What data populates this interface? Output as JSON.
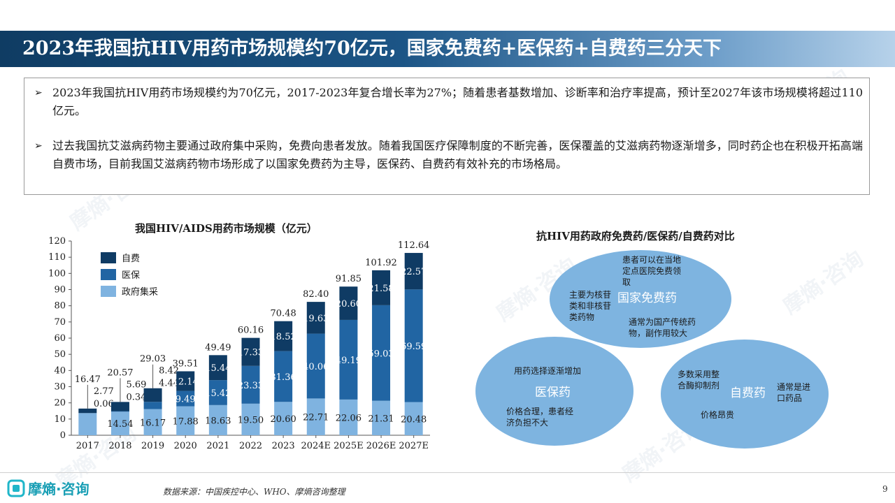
{
  "page": {
    "title": "2023年我国抗HIV用药市场规模约70亿元，国家免费药+医保药+自费药三分天下",
    "bullets": [
      "2023年我国抗HIV用药市场规模约为70亿元，2017-2023年复合增长率为27%；随着患者基数增加、诊断率和治疗率提高，预计至2027年该市场规模将超过110亿元。",
      "过去我国抗艾滋病药物主要通过政府集中采购，免费向患者发放。随着我国医疗保障制度的不断完善，医保覆盖的艾滋病药物逐渐增多，同时药企也在积极开拓高端自费市场，目前我国艾滋病药物市场形成了以国家免费药为主导，医保药、自费药有效补充的市场格局。"
    ],
    "bullet_marker": "➢",
    "source": "数据来源：中国疾控中心、WHO、摩熵咨询整理",
    "page_number": "9",
    "logo_text": "摩熵·咨询",
    "watermark": "摩熵·咨询"
  },
  "chart_data": {
    "type": "bar",
    "stacked": true,
    "title": "我国HIV/AIDS用药市场规模（亿元）",
    "categories": [
      "2017",
      "2018",
      "2019",
      "2020",
      "2021",
      "2022",
      "2023",
      "2024E",
      "2025E",
      "2026E",
      "2027E"
    ],
    "series": [
      {
        "name": "政府集采",
        "color": "#7fb3e0",
        "values": [
          13.64,
          14.54,
          16.17,
          17.88,
          18.63,
          19.5,
          20.6,
          22.71,
          22.06,
          21.31,
          20.48
        ]
      },
      {
        "name": "医保",
        "color": "#2165a3",
        "values": [
          0.06,
          0.34,
          4.44,
          9.49,
          15.42,
          23.33,
          31.36,
          40.06,
          49.19,
          59.03,
          69.59
        ]
      },
      {
        "name": "自费",
        "color": "#0f3b64",
        "values": [
          2.77,
          5.69,
          8.42,
          12.14,
          15.44,
          17.33,
          18.52,
          19.63,
          20.6,
          21.58,
          22.57
        ]
      }
    ],
    "totals": [
      "16.47",
      "20.57",
      "29.03",
      "39.51",
      "49.49",
      "60.16",
      "70.48",
      "82.40",
      "91.85",
      "101.92",
      "112.64"
    ],
    "segment_labels": {
      "政府集采": [
        "",
        "14.54",
        "16.17",
        "17.88",
        "18.63",
        "19.50",
        "20.60",
        "22.71",
        "22.06",
        "21.31",
        "20.48"
      ],
      "医保": [
        "",
        "",
        "",
        "9.49",
        "15.42",
        "23.33",
        "31.36",
        "40.06",
        "49.19",
        "59.03",
        "69.59"
      ],
      "自费": [
        "",
        "",
        "",
        "12.14",
        "15.44",
        "17.33",
        "18.52",
        "19.63",
        "20.60",
        "21.58",
        "22.57"
      ]
    },
    "callout_labels": [
      {
        "category": "2017",
        "lines": [
          "2.77",
          "0.06"
        ]
      },
      {
        "category": "2018",
        "lines": [
          "5.69",
          "0.34"
        ]
      },
      {
        "category": "2019",
        "lines": [
          "8.42",
          "4.44"
        ]
      }
    ],
    "y_ticks": [
      "0",
      "10",
      "20",
      "30",
      "40",
      "50",
      "60",
      "70",
      "80",
      "90",
      "100",
      "110",
      "120"
    ],
    "ylim": [
      0,
      120
    ],
    "legend_position": "top-left",
    "grid": false
  },
  "comparison": {
    "title": "抗HIV用药政府免费药/医保药/自费药对比",
    "free": {
      "title": "国家免费药",
      "note1": [
        "患者可以在当地",
        "定点医院免费领",
        "取"
      ],
      "note2": [
        "主要为核苷",
        "类和非核苷",
        "类药物"
      ],
      "note3": [
        "通常为国产传统药",
        "物，副作用较大"
      ]
    },
    "insurance": {
      "title": "医保药",
      "note1": [
        "用药选择逐渐增加"
      ],
      "note2": [
        "价格合理，患者经",
        "济负担不大"
      ]
    },
    "selfpay": {
      "title": "自费药",
      "note1": [
        "多数采用整",
        "合酶抑制剂"
      ],
      "note2": [
        "通常是进",
        "口药品"
      ],
      "note3": [
        "价格昂贵"
      ]
    },
    "ellipse_color": "#7eb4e0"
  }
}
